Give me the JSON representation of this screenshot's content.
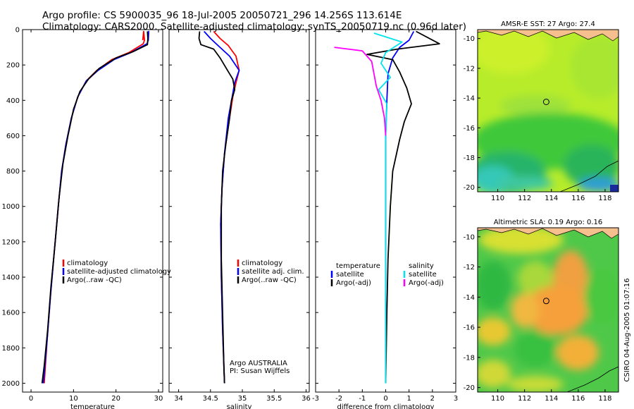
{
  "title": {
    "line1": "Argo profile: CS 5900035_96 18-Jul-2005 20050721_296 14.256S 113.614E",
    "line2": "Climatology: CARS2000. Satellite-adjusted climatology: synTS_20050719.nc (0.96d later)"
  },
  "colors": {
    "climatology": "#ff0000",
    "satellite": "#0000ff",
    "argo": "#000000",
    "sal_satellite": "#00e5ee",
    "sal_argo": "#ff00ff",
    "frame": "#000000"
  },
  "chart_data": [
    {
      "id": "temperature",
      "type": "line",
      "xlabel": "temperature",
      "ylabel": "",
      "xlim": [
        -2,
        31
      ],
      "ylim": [
        2050,
        0
      ],
      "xticks": [
        0,
        10,
        20,
        30
      ],
      "yticks": [
        0,
        200,
        400,
        600,
        800,
        1000,
        1200,
        1400,
        1600,
        1800,
        2000
      ],
      "legend": [
        "climatology",
        "satellite-adjusted climatology",
        "Argo(..raw -QC)"
      ],
      "legend_position": "lower-right",
      "series": [
        {
          "name": "climatology",
          "color": "#ff0000",
          "points": [
            [
              26.3,
              60
            ],
            [
              26.5,
              10
            ],
            [
              26.7,
              60
            ],
            [
              26.4,
              80
            ],
            [
              23,
              130
            ],
            [
              19,
              170
            ],
            [
              15.5,
              230
            ],
            [
              13,
              290
            ],
            [
              11,
              380
            ],
            [
              9.5,
              500
            ],
            [
              8.2,
              650
            ],
            [
              7.2,
              800
            ],
            [
              6.4,
              1000
            ],
            [
              5.5,
              1250
            ],
            [
              4.6,
              1500
            ],
            [
              3.8,
              1750
            ],
            [
              3.1,
              2000
            ]
          ]
        },
        {
          "name": "satellite-adjusted climatology",
          "color": "#0000ff",
          "points": [
            [
              27.6,
              60
            ],
            [
              27.7,
              10
            ],
            [
              27.6,
              60
            ],
            [
              27.3,
              80
            ],
            [
              23.5,
              130
            ],
            [
              19.5,
              170
            ],
            [
              15.8,
              230
            ],
            [
              13,
              290
            ],
            [
              11,
              380
            ],
            [
              9.5,
              500
            ],
            [
              8.2,
              650
            ],
            [
              7.2,
              800
            ],
            [
              6.4,
              1000
            ],
            [
              5.5,
              1250
            ],
            [
              4.6,
              1500
            ],
            [
              3.8,
              1750
            ],
            [
              2.9,
              2000
            ]
          ]
        },
        {
          "name": "Argo(..raw -QC)",
          "color": "#000000",
          "points": [
            [
              27.4,
              10
            ],
            [
              27.5,
              50
            ],
            [
              27.4,
              85
            ],
            [
              24,
              125
            ],
            [
              20,
              160
            ],
            [
              16,
              220
            ],
            [
              13.5,
              280
            ],
            [
              11.5,
              350
            ],
            [
              10,
              450
            ],
            [
              8.7,
              600
            ],
            [
              7.5,
              760
            ],
            [
              6.6,
              950
            ],
            [
              5.7,
              1200
            ],
            [
              4.7,
              1450
            ],
            [
              3.9,
              1700
            ],
            [
              3.1,
              1900
            ],
            [
              2.6,
              2000
            ]
          ]
        }
      ]
    },
    {
      "id": "salinity",
      "type": "line",
      "xlabel": "salinity",
      "xlim": [
        33.85,
        36.05
      ],
      "ylim": [
        2050,
        0
      ],
      "xticks": [
        34,
        34.5,
        35,
        35.5,
        36
      ],
      "xtick_labels": [
        "34",
        "34.5",
        "35",
        "35.5",
        "36"
      ],
      "legend": [
        "climatology",
        "satellite adj. clim.",
        "Argo(..raw -QC)"
      ],
      "legend_position": "lower-right",
      "annotations": [
        "Argo AUSTRALIA",
        "PI: Susan Wijffels"
      ],
      "series": [
        {
          "name": "climatology",
          "color": "#ff0000",
          "points": [
            [
              34.55,
              10
            ],
            [
              34.65,
              50
            ],
            [
              34.78,
              90
            ],
            [
              34.9,
              150
            ],
            [
              34.95,
              230
            ],
            [
              34.9,
              300
            ],
            [
              34.85,
              380
            ],
            [
              34.8,
              500
            ],
            [
              34.72,
              700
            ],
            [
              34.68,
              900
            ],
            [
              34.66,
              1100
            ],
            [
              34.67,
              1400
            ],
            [
              34.69,
              1700
            ],
            [
              34.72,
              2000
            ]
          ]
        },
        {
          "name": "satellite adj. clim.",
          "color": "#0000ff",
          "points": [
            [
              34.4,
              10
            ],
            [
              34.5,
              50
            ],
            [
              34.62,
              90
            ],
            [
              34.8,
              150
            ],
            [
              34.95,
              230
            ],
            [
              34.88,
              300
            ],
            [
              34.84,
              380
            ],
            [
              34.78,
              500
            ],
            [
              34.72,
              700
            ],
            [
              34.68,
              900
            ],
            [
              34.66,
              1100
            ],
            [
              34.67,
              1400
            ],
            [
              34.69,
              1700
            ],
            [
              34.72,
              2000
            ]
          ]
        },
        {
          "name": "Argo(..raw -QC)",
          "color": "#000000",
          "points": [
            [
              34.33,
              10
            ],
            [
              34.32,
              50
            ],
            [
              34.35,
              85
            ],
            [
              34.55,
              110
            ],
            [
              34.65,
              160
            ],
            [
              34.75,
              220
            ],
            [
              34.85,
              280
            ],
            [
              34.88,
              340
            ],
            [
              34.83,
              400
            ],
            [
              34.8,
              500
            ],
            [
              34.74,
              650
            ],
            [
              34.69,
              800
            ],
            [
              34.67,
              1000
            ],
            [
              34.67,
              1300
            ],
            [
              34.69,
              1600
            ],
            [
              34.71,
              1900
            ],
            [
              34.72,
              2000
            ]
          ]
        }
      ]
    },
    {
      "id": "difference",
      "type": "line",
      "xlabel": "difference from climatology",
      "xlim": [
        -3,
        3
      ],
      "ylim": [
        2050,
        0
      ],
      "xticks": [
        -3,
        -2,
        -1,
        0,
        1,
        2,
        3
      ],
      "legend_left": [
        "temperature",
        "satellite",
        "Argo(-adj)"
      ],
      "legend_right": [
        "salinity",
        "satellite",
        "Argo(-adj)"
      ],
      "legend_position": "lower-center",
      "series": [
        {
          "name": "temperature satellite",
          "color": "#0000ff",
          "points": [
            [
              1.2,
              10
            ],
            [
              1.0,
              60
            ],
            [
              0.6,
              100
            ],
            [
              0.3,
              160
            ],
            [
              0.1,
              250
            ],
            [
              0.05,
              400
            ],
            [
              0,
              600
            ],
            [
              0,
              1000
            ],
            [
              0,
              1500
            ],
            [
              0,
              2000
            ]
          ]
        },
        {
          "name": "temperature Argo(-adj)",
          "color": "#000000",
          "points": [
            [
              1.3,
              10
            ],
            [
              2.3,
              80
            ],
            [
              0.5,
              110
            ],
            [
              -0.8,
              140
            ],
            [
              0.3,
              170
            ],
            [
              0.6,
              240
            ],
            [
              0.9,
              330
            ],
            [
              1.1,
              420
            ],
            [
              0.8,
              520
            ],
            [
              0.6,
              620
            ],
            [
              0.3,
              800
            ],
            [
              0.2,
              1000
            ],
            [
              0.1,
              1300
            ],
            [
              0.05,
              1600
            ],
            [
              0,
              2000
            ]
          ]
        },
        {
          "name": "salinity satellite",
          "color": "#00e5ee",
          "points": [
            [
              -0.5,
              20
            ],
            [
              0.7,
              70
            ],
            [
              0.0,
              130
            ],
            [
              -0.2,
              190
            ],
            [
              0.2,
              270
            ],
            [
              -0.3,
              340
            ],
            [
              0.05,
              420
            ],
            [
              0,
              600
            ],
            [
              0,
              1000
            ],
            [
              0,
              1500
            ],
            [
              0,
              2000
            ]
          ]
        },
        {
          "name": "salinity Argo(-adj)",
          "color": "#ff00ff",
          "points": [
            [
              -2.2,
              100
            ],
            [
              -1.0,
              120
            ],
            [
              -0.6,
              180
            ],
            [
              -0.5,
              250
            ],
            [
              -0.4,
              320
            ],
            [
              -0.2,
              400
            ],
            [
              -0.05,
              500
            ],
            [
              0,
              600
            ]
          ]
        }
      ]
    },
    {
      "id": "sst-map",
      "type": "heatmap",
      "title": "AMSR-E SST: 27 Argo: 27.4",
      "xlim": [
        108.5,
        119
      ],
      "ylim": [
        -20.3,
        -9.4
      ],
      "xticks": [
        110,
        112,
        114,
        116,
        118
      ],
      "yticks": [
        -10,
        -12,
        -14,
        -16,
        -18,
        -20
      ],
      "marker": [
        113.614,
        -14.256
      ]
    },
    {
      "id": "sla-map",
      "type": "heatmap",
      "title": "Altimetric SLA: 0.19 Argo: 0.16",
      "xlim": [
        108.5,
        119
      ],
      "ylim": [
        -20.3,
        -9.4
      ],
      "xticks": [
        110,
        112,
        114,
        116,
        118
      ],
      "yticks": [
        -10,
        -12,
        -14,
        -16,
        -18,
        -20
      ],
      "marker": [
        113.614,
        -14.256
      ]
    }
  ],
  "footer": "CSIRO 04-Aug-2005 01:07:16"
}
